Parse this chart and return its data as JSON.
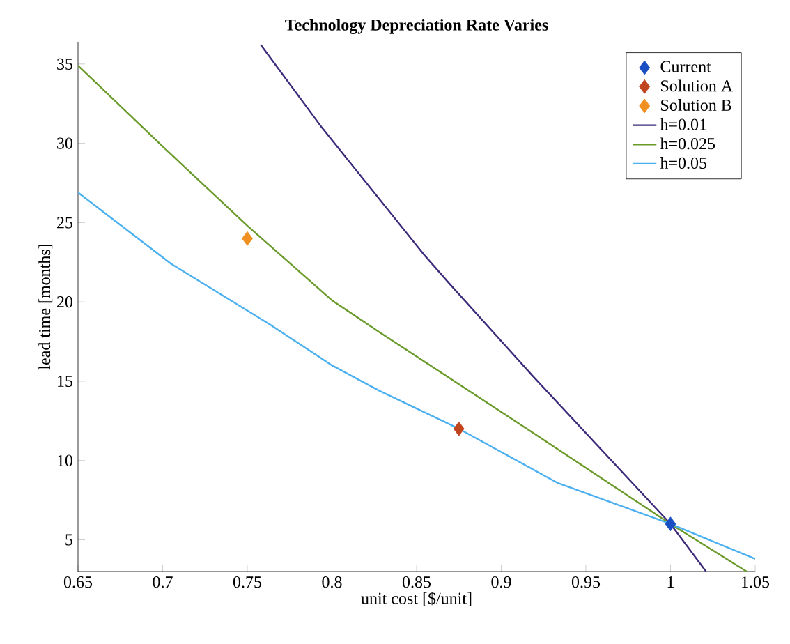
{
  "chart_data": {
    "type": "line",
    "title": "Technology Depreciation Rate Varies",
    "xlabel": "unit cost [$/unit]",
    "ylabel": "lead time [months]",
    "xlim": [
      0.65,
      1.05
    ],
    "ylim": [
      3,
      36.4
    ],
    "xticks": [
      0.65,
      0.7,
      0.75,
      0.8,
      0.85,
      0.9,
      0.95,
      1,
      1.05
    ],
    "yticks": [
      5,
      10,
      15,
      20,
      25,
      30,
      35
    ],
    "series": [
      {
        "name": "Current",
        "type": "scatter",
        "marker": "diamond",
        "color": "#1a4fc4",
        "x": [
          1
        ],
        "values": [
          6
        ]
      },
      {
        "name": "Solution A",
        "type": "scatter",
        "marker": "diamond",
        "color": "#c0441e",
        "x": [
          0.875
        ],
        "values": [
          12
        ]
      },
      {
        "name": "Solution B",
        "type": "scatter",
        "marker": "diamond",
        "color": "#f09020",
        "x": [
          0.75
        ],
        "values": [
          24
        ]
      },
      {
        "name": "h=0.01",
        "color": "#3d2a7a",
        "x": [
          0.758,
          0.794,
          0.855,
          0.869,
          0.918,
          1,
          1.021
        ],
        "values": [
          36.2,
          31.0,
          22.9,
          21.2,
          15.4,
          6,
          3
        ]
      },
      {
        "name": "h=0.025",
        "color": "#6a9a2a",
        "x": [
          0.65,
          0.7,
          0.75,
          0.8,
          0.828,
          0.918,
          1,
          1.045
        ],
        "values": [
          34.9,
          29.8,
          24.8,
          20.1,
          18.1,
          11.8,
          6,
          3
        ]
      },
      {
        "name": "h=0.05",
        "color": "#4ab0f0",
        "x": [
          0.65,
          0.705,
          0.763,
          0.8,
          0.828,
          0.875,
          0.933,
          1,
          1.05
        ],
        "values": [
          26.9,
          22.4,
          18.6,
          16.0,
          14.4,
          12,
          8.6,
          6,
          3.8
        ]
      }
    ],
    "legend": "top right",
    "grid": false
  }
}
